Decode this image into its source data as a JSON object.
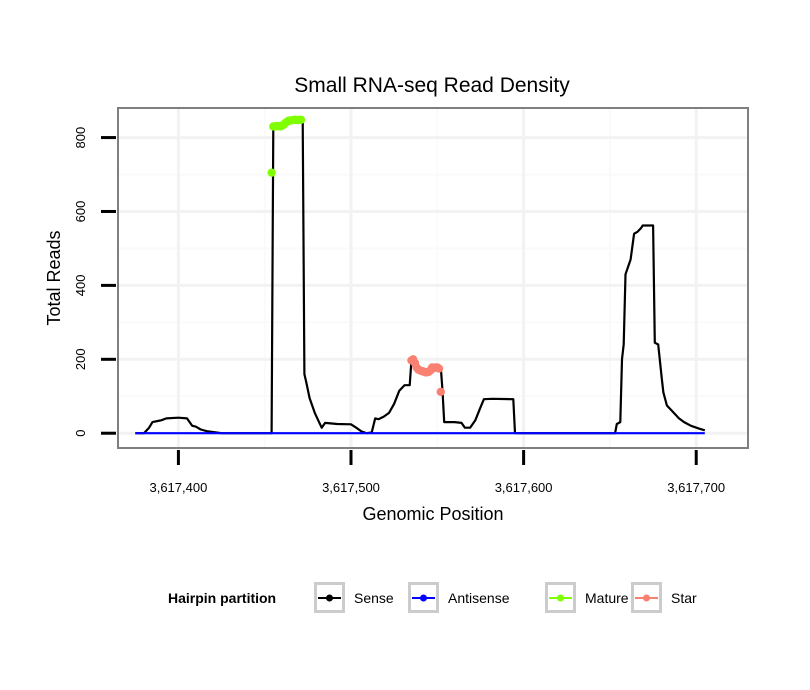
{
  "chart_data": {
    "type": "line",
    "title": "Small RNA-seq Read Density",
    "xlabel": "Genomic Position",
    "ylabel": "Total Reads",
    "xlim": [
      3617365,
      3617730
    ],
    "ylim": [
      -40,
      880
    ],
    "x_ticks": [
      3617400,
      3617500,
      3617600,
      3617700
    ],
    "x_tick_labels": [
      "3,617,400",
      "3,617,500",
      "3,617,600",
      "3,617,700"
    ],
    "y_ticks": [
      0,
      200,
      400,
      600,
      800
    ],
    "y_tick_labels": [
      "0",
      "200",
      "400",
      "600",
      "800"
    ],
    "grid": true,
    "legend": {
      "title": "Hairpin partition",
      "position": "bottom",
      "entries": [
        {
          "label": "Sense",
          "color": "#000000"
        },
        {
          "label": "Antisense",
          "color": "#0000ff"
        },
        {
          "label": "Mature",
          "color": "#7fff00"
        },
        {
          "label": "Star",
          "color": "#fa8072"
        }
      ]
    },
    "series": [
      {
        "name": "Sense",
        "color": "#000000",
        "kind": "line",
        "points": [
          [
            3617375,
            0
          ],
          [
            3617380,
            0
          ],
          [
            3617383,
            15
          ],
          [
            3617385,
            30
          ],
          [
            3617388,
            33
          ],
          [
            3617390,
            35
          ],
          [
            3617393,
            40
          ],
          [
            3617400,
            42
          ],
          [
            3617405,
            40
          ],
          [
            3617408,
            20
          ],
          [
            3617410,
            18
          ],
          [
            3617413,
            10
          ],
          [
            3617417,
            5
          ],
          [
            3617422,
            2
          ],
          [
            3617425,
            0
          ],
          [
            3617454,
            0
          ],
          [
            3617455,
            830
          ],
          [
            3617456,
            830
          ],
          [
            3617460,
            832
          ],
          [
            3617463,
            842
          ],
          [
            3617466,
            846
          ],
          [
            3617472,
            848
          ],
          [
            3617473,
            160
          ],
          [
            3617474,
            140
          ],
          [
            3617476,
            95
          ],
          [
            3617479,
            55
          ],
          [
            3617481,
            35
          ],
          [
            3617483,
            15
          ],
          [
            3617485,
            28
          ],
          [
            3617492,
            25
          ],
          [
            3617500,
            24
          ],
          [
            3617503,
            15
          ],
          [
            3617506,
            5
          ],
          [
            3617509,
            0
          ],
          [
            3617512,
            2
          ],
          [
            3617514,
            40
          ],
          [
            3617516,
            38
          ],
          [
            3617519,
            45
          ],
          [
            3617522,
            55
          ],
          [
            3617525,
            80
          ],
          [
            3617528,
            115
          ],
          [
            3617531,
            130
          ],
          [
            3617534,
            130
          ],
          [
            3617535,
            195
          ],
          [
            3617537,
            195
          ],
          [
            3617540,
            172
          ],
          [
            3617544,
            165
          ],
          [
            3617547,
            170
          ],
          [
            3617549,
            178
          ],
          [
            3617552,
            178
          ],
          [
            3617553,
            115
          ],
          [
            3617554,
            30
          ],
          [
            3617560,
            30
          ],
          [
            3617564,
            28
          ],
          [
            3617566,
            15
          ],
          [
            3617569,
            15
          ],
          [
            3617572,
            35
          ],
          [
            3617575,
            70
          ],
          [
            3617577,
            92
          ],
          [
            3617582,
            93
          ],
          [
            3617594,
            92
          ],
          [
            3617595,
            0
          ],
          [
            3617653,
            0
          ],
          [
            3617654,
            25
          ],
          [
            3617656,
            30
          ],
          [
            3617657,
            200
          ],
          [
            3617658,
            240
          ],
          [
            3617659,
            430
          ],
          [
            3617662,
            470
          ],
          [
            3617664,
            540
          ],
          [
            3617666,
            545
          ],
          [
            3617668,
            555
          ],
          [
            3617669,
            562
          ],
          [
            3617675,
            562
          ],
          [
            3617676,
            245
          ],
          [
            3617678,
            240
          ],
          [
            3617680,
            150
          ],
          [
            3617681,
            110
          ],
          [
            3617683,
            75
          ],
          [
            3617686,
            60
          ],
          [
            3617690,
            40
          ],
          [
            3617693,
            30
          ],
          [
            3617697,
            20
          ],
          [
            3617702,
            12
          ],
          [
            3617705,
            8
          ]
        ]
      },
      {
        "name": "Antisense",
        "color": "#0000ff",
        "kind": "line",
        "points": [
          [
            3617375,
            0
          ],
          [
            3617705,
            0
          ]
        ]
      },
      {
        "name": "Mature",
        "color": "#7fff00",
        "kind": "points",
        "points": [
          [
            3617454,
            705
          ],
          [
            3617455,
            830
          ],
          [
            3617456,
            830
          ],
          [
            3617457,
            831
          ],
          [
            3617458,
            831
          ],
          [
            3617459,
            830
          ],
          [
            3617460,
            832
          ],
          [
            3617461,
            835
          ],
          [
            3617462,
            840
          ],
          [
            3617463,
            843
          ],
          [
            3617464,
            846
          ],
          [
            3617465,
            846
          ],
          [
            3617466,
            847
          ],
          [
            3617467,
            848
          ],
          [
            3617468,
            848
          ],
          [
            3617469,
            847
          ],
          [
            3617470,
            848
          ],
          [
            3617471,
            848
          ]
        ]
      },
      {
        "name": "Star",
        "color": "#fa8072",
        "kind": "points",
        "points": [
          [
            3617535,
            197
          ],
          [
            3617536,
            200
          ],
          [
            3617537,
            190
          ],
          [
            3617538,
            178
          ],
          [
            3617539,
            172
          ],
          [
            3617540,
            170
          ],
          [
            3617541,
            168
          ],
          [
            3617542,
            167
          ],
          [
            3617543,
            165
          ],
          [
            3617544,
            165
          ],
          [
            3617545,
            166
          ],
          [
            3617546,
            170
          ],
          [
            3617547,
            178
          ],
          [
            3617548,
            176
          ],
          [
            3617549,
            178
          ],
          [
            3617550,
            178
          ],
          [
            3617551,
            175
          ],
          [
            3617552,
            112
          ]
        ]
      }
    ]
  }
}
